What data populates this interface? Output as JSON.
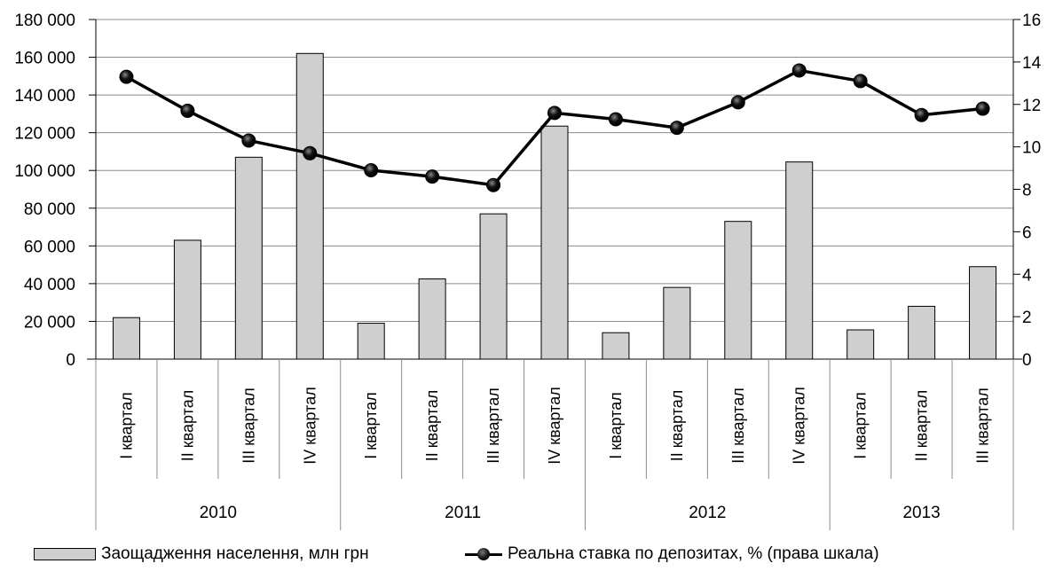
{
  "chart_data": {
    "type": "bar",
    "categories": [
      "I квартал",
      "II квартал",
      "III квартал",
      "IV квартал",
      "I квартал",
      "II квартал",
      "III квартал",
      "IV квартал",
      "I квартал",
      "II квартал",
      "III квартал",
      "IV квартал",
      "I квартал",
      "II квартал",
      "III квартал"
    ],
    "groups": [
      {
        "label": "2010",
        "count": 4
      },
      {
        "label": "2011",
        "count": 4
      },
      {
        "label": "2012",
        "count": 4
      },
      {
        "label": "2013",
        "count": 3
      }
    ],
    "series": [
      {
        "name": "Заощадження населення, млн грн",
        "type": "bar",
        "axis": "left",
        "values": [
          22000,
          63000,
          107000,
          162000,
          19000,
          42500,
          77000,
          123500,
          14000,
          38000,
          73000,
          104500,
          15500,
          28000,
          49000
        ]
      },
      {
        "name": "Реальна ставка по депозитах, % (права шкала)",
        "type": "line",
        "axis": "right",
        "values": [
          13.3,
          11.7,
          10.3,
          9.7,
          8.9,
          8.6,
          8.2,
          11.6,
          11.3,
          10.9,
          12.1,
          13.6,
          13.1,
          11.5,
          11.8
        ]
      }
    ],
    "ylim": [
      0,
      180000
    ],
    "y_ticks": [
      "0",
      "20 000",
      "40 000",
      "60 000",
      "80 000",
      "100 000",
      "120 000",
      "140 000",
      "160 000",
      "180 000"
    ],
    "y2lim": [
      0,
      16
    ],
    "y2_ticks": [
      "0",
      "2",
      "4",
      "6",
      "8",
      "10",
      "12",
      "14",
      "16"
    ],
    "grid": true,
    "legend_position": "bottom",
    "colors": {
      "bar": "#cfcfcf",
      "bar_edge": "#000000",
      "line": "#000000",
      "grid": "#8c8c8c"
    }
  }
}
